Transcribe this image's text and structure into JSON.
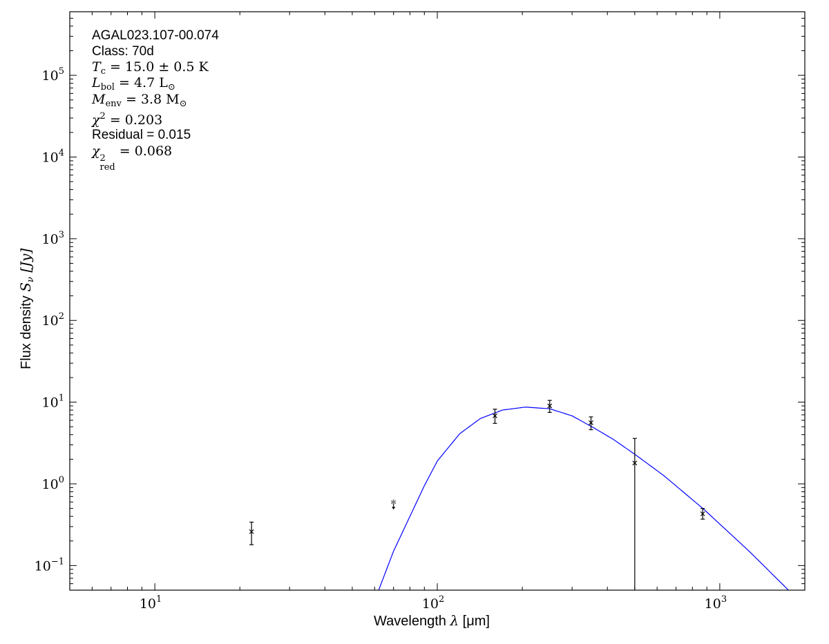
{
  "annotations": {
    "source_name": "AGAL023.107-00.074",
    "class_label": "Class: 70d",
    "tc": {
      "symbol": "T",
      "sub": "c",
      "value": "= 15.0 ± 0.5 K"
    },
    "lbol": {
      "symbol": "L",
      "sub": "bol",
      "value": "= 4.7 L",
      "unit_sub": "⊙"
    },
    "menv": {
      "symbol": "M",
      "sub": "env",
      "value": "= 3.8 M",
      "unit_sub": "⊙"
    },
    "chi2": {
      "symbol": "χ",
      "sup": "2",
      "value": "= 0.203"
    },
    "residual": "Residual = 0.015",
    "chi2red": {
      "symbol": "χ",
      "sup": "2",
      "sub": "red",
      "value": "= 0.068"
    }
  },
  "chart_data": {
    "type": "scatter",
    "xlabel": {
      "text": "Wavelength ",
      "symbol": "λ",
      "unit": " [μm]"
    },
    "ylabel": {
      "text": "Flux density ",
      "symbol": "S",
      "sub": "ν",
      "unit": " [Jy]"
    },
    "xscale": "log",
    "yscale": "log",
    "xlim": [
      5,
      2000
    ],
    "ylim": [
      0.05,
      600000
    ],
    "xticks": [
      {
        "value": 10,
        "base": "10",
        "exp": "1"
      },
      {
        "value": 100,
        "base": "10",
        "exp": "2"
      },
      {
        "value": 1000,
        "base": "10",
        "exp": "3"
      }
    ],
    "yticks": [
      {
        "value": 0.1,
        "base": "10",
        "exp": "−1"
      },
      {
        "value": 1,
        "base": "10",
        "exp": "0"
      },
      {
        "value": 10,
        "base": "10",
        "exp": "1"
      },
      {
        "value": 100,
        "base": "10",
        "exp": "2"
      },
      {
        "value": 1000,
        "base": "10",
        "exp": "3"
      },
      {
        "value": 10000,
        "base": "10",
        "exp": "4"
      },
      {
        "value": 100000,
        "base": "10",
        "exp": "5"
      }
    ],
    "grid": false,
    "colors": {
      "model": "#0000ff",
      "points": "#000000",
      "upper_limit": "#808080"
    },
    "points": [
      {
        "x": 22,
        "y": 0.26,
        "ylo": 0.18,
        "yhi": 0.34
      },
      {
        "x": 160,
        "y": 6.8,
        "ylo": 5.5,
        "yhi": 8.2
      },
      {
        "x": 250,
        "y": 9.0,
        "ylo": 7.5,
        "yhi": 10.5
      },
      {
        "x": 350,
        "y": 5.6,
        "ylo": 4.6,
        "yhi": 6.6
      },
      {
        "x": 500,
        "y": 1.8,
        "ylo": 0.05,
        "yhi": 3.6
      },
      {
        "x": 870,
        "y": 0.43,
        "ylo": 0.37,
        "yhi": 0.5
      }
    ],
    "upper_limits": [
      {
        "x": 70,
        "y": 0.6
      }
    ],
    "model_curve": {
      "x": [
        62,
        70,
        80,
        90,
        100,
        120,
        142,
        170,
        205,
        250,
        300,
        358,
        420,
        503,
        634,
        877,
        1270,
        1750
      ],
      "y": [
        0.05,
        0.15,
        0.4,
        0.95,
        1.9,
        4.1,
        6.3,
        8.0,
        8.7,
        8.3,
        6.8,
        4.85,
        3.5,
        2.27,
        1.26,
        0.49,
        0.15,
        0.05
      ]
    }
  }
}
